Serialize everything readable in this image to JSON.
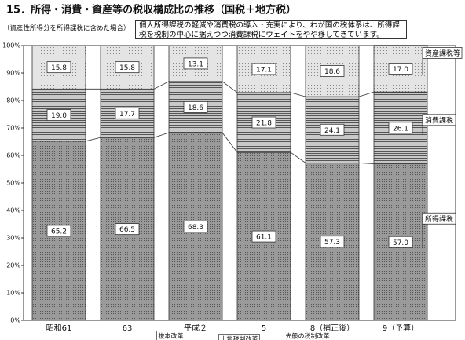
{
  "chart_data": {
    "type": "stacked_bar",
    "title": "15．所得・消費・資産等の税収構成比の推移（国税＋地方税）",
    "subtitle": "（資産性所得分を所得課税に含めた場合）",
    "annotation": "個人所得課税の軽減や消費税の導入・充実により、わが国の税体系は、所得課税を税制の中心に据えつつ消費課税にウェイトをやや移してきています。",
    "categories": [
      "昭和61",
      "63",
      "平成２",
      "5",
      "8（補正後）",
      "9（予算）"
    ],
    "reform_notes": [
      "抜本改革",
      "土地税制改革",
      "先般の税制改革"
    ],
    "series": [
      {
        "name": "所得課税",
        "color": "#8c8c8c",
        "values": [
          65.2,
          66.5,
          68.3,
          61.1,
          57.3,
          57.0
        ],
        "value_labels": [
          "65.2",
          "66.5",
          "68.3",
          "61.1",
          "57.3",
          "57.0"
        ]
      },
      {
        "name": "消費課税",
        "color": "#b4b4b4",
        "values": [
          19.0,
          17.7,
          18.6,
          21.8,
          24.1,
          26.1
        ],
        "value_labels": [
          "19.0",
          "17.7",
          "18.6",
          "21.8",
          "24.1",
          "26.1"
        ]
      },
      {
        "name": "資産課税等",
        "color": "#dedede",
        "values": [
          15.8,
          15.8,
          13.1,
          17.1,
          18.6,
          17.0
        ],
        "value_labels": [
          "15.8",
          "15.8",
          "13.1",
          "17.1",
          "18.6",
          "17.0"
        ]
      }
    ],
    "ylim": [
      0,
      100
    ],
    "yticks": [
      {
        "value": 0,
        "label": "0%"
      },
      {
        "value": 10,
        "label": "10%"
      },
      {
        "value": 20,
        "label": "20%"
      },
      {
        "value": 30,
        "label": "30%"
      },
      {
        "value": 40,
        "label": "40%"
      },
      {
        "value": 50,
        "label": "50%"
      },
      {
        "value": 60,
        "label": "60%"
      },
      {
        "value": 70,
        "label": "70%"
      },
      {
        "value": 80,
        "label": "80%"
      },
      {
        "value": 90,
        "label": "90%"
      },
      {
        "value": 100,
        "label": "100%"
      }
    ]
  }
}
